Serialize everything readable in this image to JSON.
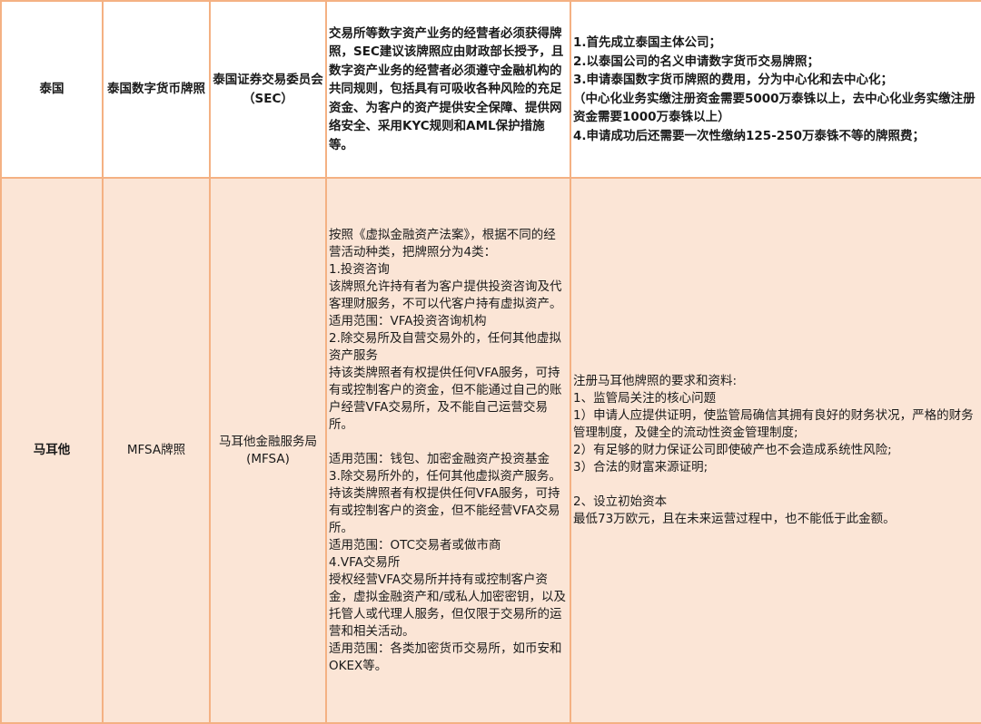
{
  "rows": [
    {
      "country": "泰国",
      "license": "泰国数字货币牌照",
      "regulator": "泰国证券交易委员会（SEC）",
      "description": "交易所等数字资产业务的经营者必须获得牌照，SEC建议该牌照应由财政部长授予，且数字资产业务的经营者必须遵守金融机构的共同规则，包括具有可吸收各种风险的充足资金、为客户的资产提供安全保障、提供网络安全、采用KYC规则和AML保护措施等。",
      "requirements": "1.首先成立泰国主体公司；\n2.以泰国公司的名义申请数字货币交易牌照；\n3.申请泰国数字货币牌照的费用，分为中心化和去中心化；\n（中心化业务实缴注册资金需要5000万泰铢以上，去中心化业务实缴注册资金需要1000万泰铢以上）\n4.申请成功后还需要一次性缴纳125-250万泰铢不等的牌照费；"
    },
    {
      "country": "马耳他",
      "license": "MFSA牌照",
      "regulator": "马耳他金融服务局(MFSA)",
      "description": "按照《虚拟金融资产法案》，根据不同的经营活动种类，把牌照分为4类：\n1.投资咨询\n该牌照允许持有者为客户提供投资咨询及代客理财服务，不可以代客户持有虚拟资产。\n适用范围：VFA投资咨询机构\n2.除交易所及自营交易外的，任何其他虚拟资产服务\n持该类牌照者有权提供任何VFA服务，可持有或控制客户的资金，但不能通过自己的账户经营VFA交易所，及不能自己运营交易所。\n\n适用范围：钱包、加密金融资产投资基金\n3.除交易所外的，任何其他虚拟资产服务。\n持该类牌照者有权提供任何VFA服务，可持有或控制客户的资金，但不能经营VFA交易所。\n适用范围：OTC交易者或做市商\n4.VFA交易所\n授权经营VFA交易所并持有或控制客户资金，虚拟金融资产和/或私人加密密钥，以及托管人或代理人服务，但仅限于交易所的运营和相关活动。\n适用范围：各类加密货币交易所，如币安和OKEX等。",
      "requirements": "注册马耳他牌照的要求和资料:\n1、监管局关注的核心问题\n1）申请人应提供证明，使监管局确信其拥有良好的财务状况，严格的财务管理制度，及健全的流动性资金管理制度;\n2）有足够的财力保证公司即使破产也不会造成系统性风险;\n3）合法的财富来源证明;\n\n2、设立初始资本\n最低73万欧元，且在未来运营过程中，也不能低于此金额。"
    }
  ],
  "colors": {
    "border": "#f4b183",
    "row_highlight": "#fbe5d6"
  }
}
